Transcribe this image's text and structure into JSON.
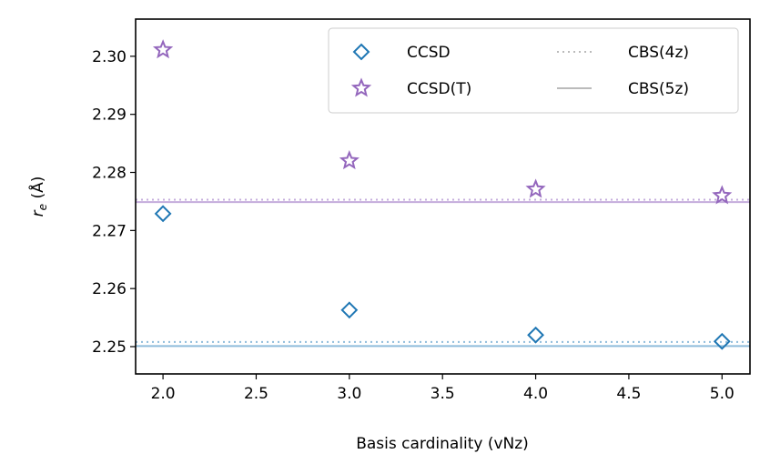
{
  "chart_data": {
    "type": "scatter",
    "xlabel": "Basis cardinality (vNz)",
    "ylabel_main": "r",
    "ylabel_sub": "e",
    "ylabel_unit": " (Å)",
    "xlim": [
      1.853,
      5.15
    ],
    "ylim": [
      2.2453,
      2.3064
    ],
    "xticks": [
      2.0,
      2.5,
      3.0,
      3.5,
      4.0,
      4.5,
      5.0
    ],
    "xtick_labels": [
      "2.0",
      "2.5",
      "3.0",
      "3.5",
      "4.0",
      "4.5",
      "5.0"
    ],
    "yticks": [
      2.25,
      2.26,
      2.27,
      2.28,
      2.29,
      2.3
    ],
    "ytick_labels": [
      "2.25",
      "2.26",
      "2.27",
      "2.28",
      "2.29",
      "2.30"
    ],
    "grid": false,
    "legend_placement": "top-right",
    "series": [
      {
        "name": "CCSD",
        "marker": "diamond",
        "color": "#1f77b4",
        "x": [
          2,
          3,
          4,
          5
        ],
        "y": [
          2.2729,
          2.2563,
          2.252,
          2.2509
        ]
      },
      {
        "name": "CCSD(T)",
        "marker": "star",
        "color": "#9467bd",
        "x": [
          2,
          3,
          4,
          5
        ],
        "y": [
          2.3011,
          2.282,
          2.2771,
          2.276
        ]
      }
    ],
    "reference_lines": [
      {
        "name": "CBS(4z)",
        "style": "dotted",
        "legend_color": "#bbbbbb",
        "values": [
          {
            "series": "CCSD",
            "y": 2.2508,
            "color": "#8fbcdb"
          },
          {
            "series": "CCSD(T)",
            "y": 2.2753,
            "color": "#c4acdc"
          }
        ]
      },
      {
        "name": "CBS(5z)",
        "style": "solid",
        "legend_color": "#bbbbbb",
        "values": [
          {
            "series": "CCSD",
            "y": 2.2501,
            "color": "#8fbcdb"
          },
          {
            "series": "CCSD(T)",
            "y": 2.2749,
            "color": "#c4acdc"
          }
        ]
      }
    ]
  }
}
